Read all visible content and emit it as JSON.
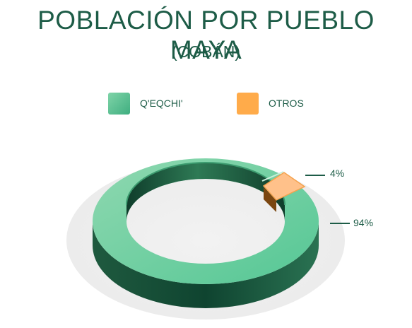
{
  "chart_data": {
    "type": "pie",
    "style": "3d-donut",
    "title": "POBLACIÓN POR PUEBLO MAYA",
    "subtitle": "(COBÁN)",
    "legend_position": "top-center",
    "categories": [
      "Q'EQCHI'",
      "OTROS"
    ],
    "values": [
      94,
      4
    ],
    "data_labels": [
      "94%",
      "4%"
    ],
    "colors": [
      "#5cc79a",
      "#ffab4a"
    ]
  }
}
